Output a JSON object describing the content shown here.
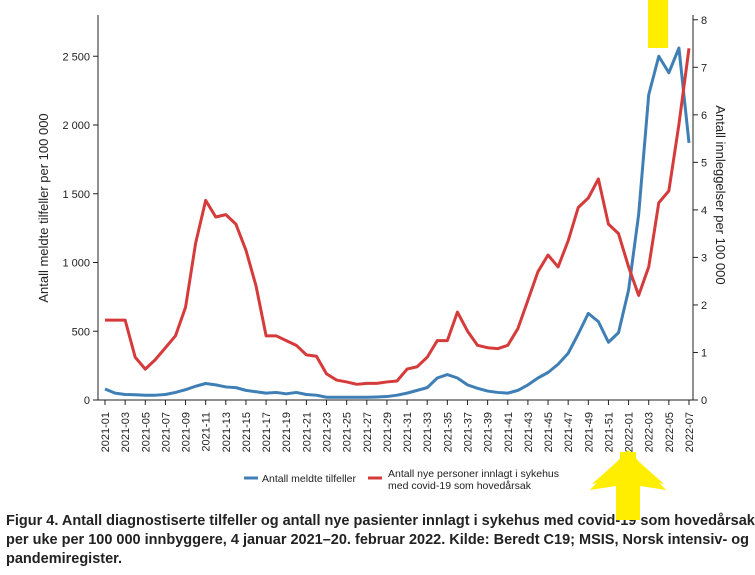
{
  "chart_data": {
    "type": "line",
    "caption": "Figur 4. Antall diagnostiserte tilfeller og antall nye pasienter innlagt i sykehus med covid-19 som hovedårsak per uke per 100 000 innbyggere, 4 januar 2021–20. februar 2022. Kilde: Beredt C19; MSIS, Norsk intensiv- og pandemiregister.",
    "ylabel": "Antall meldte tilfeller per 100 000",
    "y2label": "Antall innleggelser per 100 000",
    "categories": [
      "2021-01",
      null,
      "2021-03",
      null,
      "2021-05",
      null,
      "2021-07",
      null,
      "2021-09",
      null,
      "2021-11",
      null,
      "2021-13",
      null,
      "2021-15",
      null,
      "2021-17",
      null,
      "2021-19",
      null,
      "2021-21",
      null,
      "2021-23",
      null,
      "2021-25",
      null,
      "2021-27",
      null,
      "2021-29",
      null,
      "2021-31",
      null,
      "2021-33",
      null,
      "2021-35",
      null,
      "2021-37",
      null,
      "2021-39",
      null,
      "2021-41",
      null,
      "2021-43",
      null,
      "2021-45",
      null,
      "2021-47",
      null,
      "2021-49",
      null,
      "2021-51",
      null,
      "2022-01",
      null,
      "2022-03",
      null,
      "2022-05",
      null,
      "2022-07"
    ],
    "series": [
      {
        "name": "Antall meldte tilfeller",
        "color": "#3f7fb5",
        "axis": "y",
        "values": [
          80,
          50,
          40,
          38,
          35,
          35,
          40,
          55,
          75,
          100,
          120,
          110,
          95,
          90,
          70,
          60,
          50,
          55,
          45,
          55,
          40,
          35,
          20,
          20,
          20,
          20,
          20,
          22,
          25,
          35,
          50,
          70,
          90,
          160,
          185,
          160,
          110,
          85,
          65,
          55,
          50,
          70,
          110,
          160,
          200,
          260,
          340,
          480,
          630,
          570,
          420,
          490,
          800,
          1350,
          2220,
          2500,
          2380,
          2560,
          1870
        ]
      },
      {
        "name": "Antall nye personer innlagt i sykehus med covid-19 som hovedårsak",
        "color": "#d63b3b",
        "axis": "y2",
        "values": [
          1.68,
          1.68,
          1.68,
          0.9,
          0.65,
          0.85,
          1.1,
          1.35,
          1.95,
          3.3,
          4.2,
          3.85,
          3.9,
          3.7,
          3.15,
          2.4,
          1.35,
          1.35,
          1.25,
          1.15,
          0.95,
          0.92,
          0.55,
          0.42,
          0.38,
          0.33,
          0.35,
          0.35,
          0.38,
          0.4,
          0.65,
          0.7,
          0.9,
          1.25,
          1.25,
          1.85,
          1.45,
          1.15,
          1.1,
          1.08,
          1.15,
          1.5,
          2.1,
          2.7,
          3.05,
          2.8,
          3.35,
          4.05,
          4.25,
          4.65,
          3.7,
          3.5,
          2.8,
          2.2,
          2.8,
          4.15,
          4.4,
          5.8,
          7.4
        ]
      }
    ],
    "ylim": [
      0,
      2800
    ],
    "yticks": [
      0,
      500,
      {
        "value": 1000,
        "label": "1 000"
      },
      {
        "value": 1500,
        "label": "1 500"
      },
      {
        "value": 2000,
        "label": "2 000"
      },
      {
        "value": 2500,
        "label": "2 500"
      }
    ],
    "y2lim": [
      0,
      8.1
    ],
    "y2ticks": [
      0,
      1,
      2,
      3,
      4,
      5,
      6,
      7,
      8
    ],
    "grid": false
  }
}
